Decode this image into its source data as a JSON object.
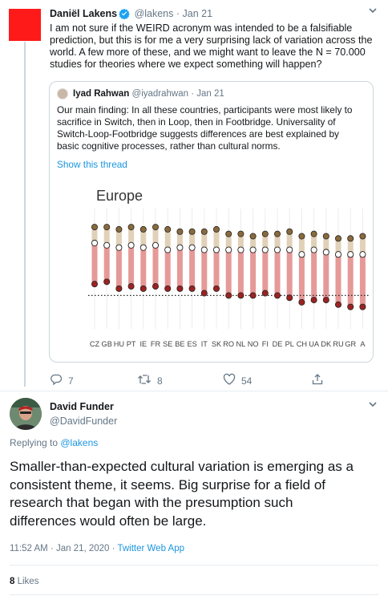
{
  "tweet1": {
    "name": "Daniël Lakens",
    "handle": "@lakens",
    "separator": "·",
    "date": "Jan 21",
    "text": "I am not sure if the WEIRD acronym was intended to be a falsifiable prediction, but this is for me a very surprising lack of variation across the world. A few more of these, and we might want to leave the N = 70.000 studies for theories where we expect something will happen?",
    "quote": {
      "name": "Iyad Rahwan",
      "handle": "@iyadrahwan",
      "date": "Jan 21",
      "text": "Our main finding: In all these countries, participants were most likely to sacrifice in Switch, then in Loop, then in Footbridge. Universality of Switch-Loop-Footbridge suggests differences are best explained by basic cognitive processes, rather than cultural norms.",
      "show_thread": "Show this thread"
    },
    "actions": {
      "replies": "7",
      "retweets": "8",
      "likes": "54"
    }
  },
  "chart_data": {
    "type": "dot-range",
    "title": "Europe",
    "categories": [
      "CZ",
      "GB",
      "HU",
      "PT",
      "IE",
      "FR",
      "SE",
      "BE",
      "ES",
      "IT",
      "SK",
      "RO",
      "NL",
      "NO",
      "FI",
      "DE",
      "PL",
      "CH",
      "UA",
      "DK",
      "RU",
      "GR",
      "A"
    ],
    "series": [
      {
        "values": [
          0.84,
          0.84,
          0.83,
          0.84,
          0.83,
          0.84,
          0.83,
          0.82,
          0.82,
          0.82,
          0.83,
          0.81,
          0.81,
          0.8,
          0.81,
          0.81,
          0.82,
          0.8,
          0.81,
          0.8,
          0.79,
          0.79,
          0.8
        ]
      },
      {
        "values": [
          0.77,
          0.76,
          0.75,
          0.76,
          0.75,
          0.76,
          0.74,
          0.75,
          0.75,
          0.74,
          0.74,
          0.74,
          0.74,
          0.74,
          0.74,
          0.74,
          0.74,
          0.72,
          0.74,
          0.73,
          0.72,
          0.72,
          0.72
        ]
      },
      {
        "values": [
          0.59,
          0.6,
          0.57,
          0.58,
          0.57,
          0.58,
          0.57,
          0.57,
          0.57,
          0.55,
          0.57,
          0.54,
          0.54,
          0.54,
          0.55,
          0.54,
          0.53,
          0.51,
          0.52,
          0.52,
          0.5,
          0.49,
          0.49
        ]
      }
    ],
    "reference_line": 0.54,
    "ylim": [
      0.45,
      0.9
    ],
    "colors": {
      "top": "#8a6a3d",
      "middle": "#ffffff",
      "bottom": "#9e2221",
      "band_upper": "#e0d1b8",
      "band_lower": "#e59a98"
    }
  },
  "tweet2": {
    "name": "David Funder",
    "handle": "@DavidFunder",
    "replying_prefix": "Replying to ",
    "replying_to": "@lakens",
    "text": "Smaller-than-expected cultural variation is emerging as a consistent theme, it seems. Big surprise for a field of research that began with the presumption such differences would often be large.",
    "time": "11:52 AM · Jan 21, 2020 · ",
    "source": "Twitter Web App",
    "like_count": "8",
    "likes_label": " Likes"
  },
  "colors": {
    "accent": "#1b95e0",
    "muted": "#657786",
    "border": "#ccd6dd"
  }
}
